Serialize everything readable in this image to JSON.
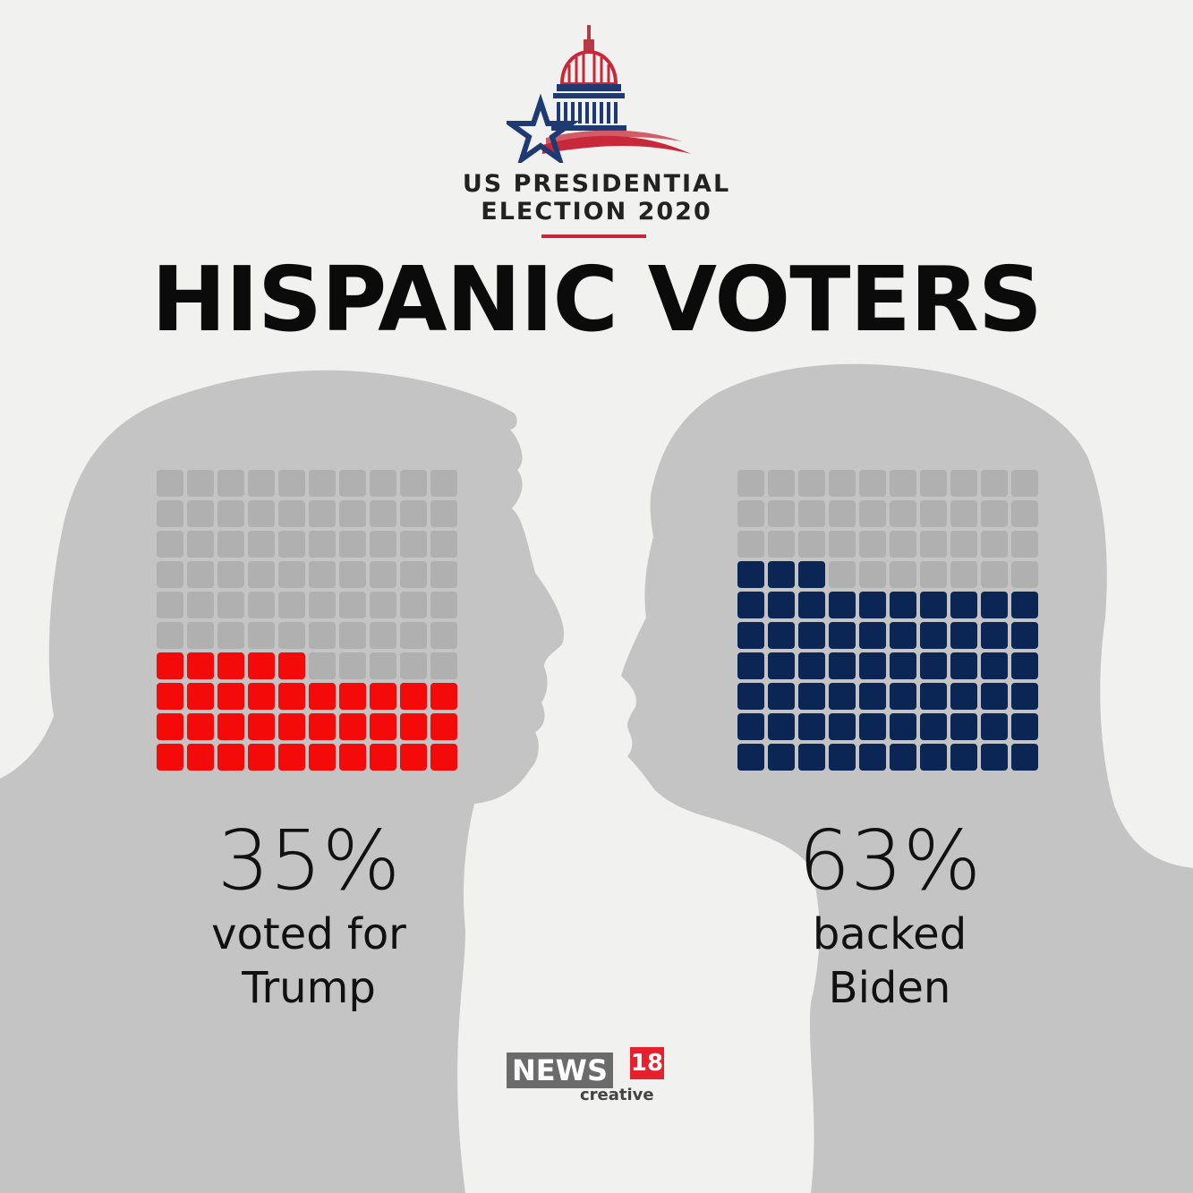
{
  "header": {
    "kicker_line1": "US PRESIDENTIAL",
    "kicker_line2": "ELECTION 2020",
    "title": "HISPANIC VOTERS"
  },
  "colors": {
    "background": "#f1f1f0",
    "silhouette": "#c4c4c4",
    "empty_cell": "#b0b0b0",
    "trump": "#f50a0a",
    "biden": "#0b2554",
    "accent_red": "#c8283a"
  },
  "chart_data": [
    {
      "type": "waffle",
      "total_cells": 100,
      "grid": [
        10,
        10
      ],
      "value": 35,
      "value_label": "35%",
      "caption_line1": "voted for",
      "caption_line2": "Trump",
      "color": "#f50a0a"
    },
    {
      "type": "waffle",
      "total_cells": 100,
      "grid": [
        10,
        10
      ],
      "value": 63,
      "value_label": "63%",
      "caption_line1": "backed",
      "caption_line2": "Biden",
      "color": "#0b2554"
    }
  ],
  "brand": {
    "name": "NEWS",
    "number": "18",
    "sub": "creative"
  },
  "icons": [
    "capitol-dome-icon",
    "star-icon"
  ]
}
